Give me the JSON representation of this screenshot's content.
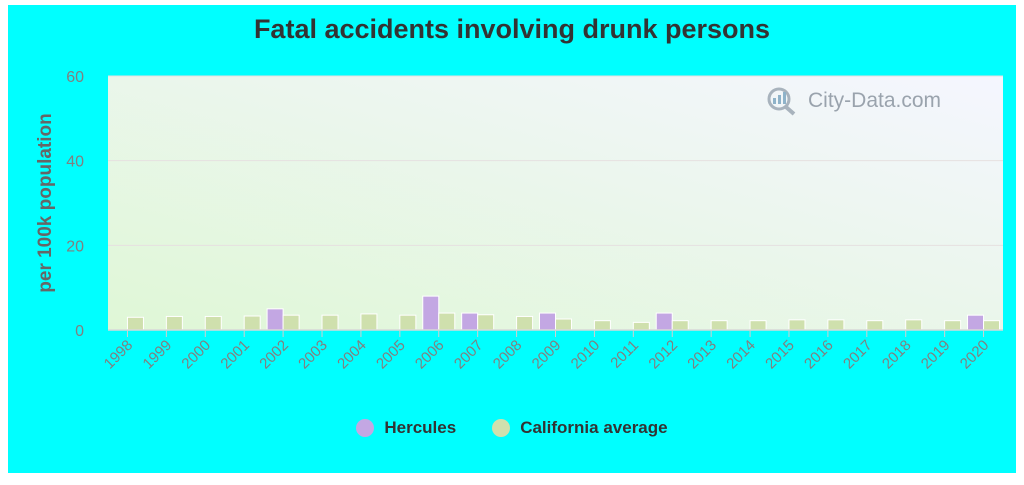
{
  "colors": {
    "page_background": "#00ffff",
    "plot_gradient_top": "#f5f6ff",
    "plot_gradient_bottom": "#dff7d6",
    "hercules": "#c3a7e3",
    "california": "#cfe0ad",
    "text": "#333333",
    "axis_text": "#808080"
  },
  "watermark": {
    "text": "City-Data.com",
    "icon": "magnifier-chart-icon"
  },
  "legend": {
    "items": [
      {
        "label": "Hercules",
        "color": "#c3a7e3"
      },
      {
        "label": "California average",
        "color": "#cfe0ad"
      }
    ]
  },
  "chart_data": {
    "type": "bar",
    "title": "Fatal accidents involving drunk persons",
    "xlabel": "",
    "ylabel": "per 100k population",
    "ylim": [
      0,
      60
    ],
    "yticks": [
      0,
      20,
      40,
      60
    ],
    "grid": true,
    "legend_position": "bottom",
    "categories": [
      "1998",
      "1999",
      "2000",
      "2001",
      "2002",
      "2003",
      "2004",
      "2005",
      "2006",
      "2007",
      "2008",
      "2009",
      "2010",
      "2011",
      "2012",
      "2013",
      "2014",
      "2015",
      "2016",
      "2017",
      "2018",
      "2019",
      "2020"
    ],
    "series": [
      {
        "name": "Hercules",
        "values": [
          null,
          null,
          null,
          null,
          5,
          null,
          null,
          null,
          8,
          4,
          null,
          4,
          null,
          null,
          4,
          null,
          null,
          null,
          null,
          null,
          null,
          null,
          3.5
        ]
      },
      {
        "name": "California average",
        "values": [
          3,
          3.2,
          3.2,
          3.3,
          3.5,
          3.5,
          3.8,
          3.5,
          4,
          3.6,
          3.2,
          2.6,
          2.2,
          1.8,
          2.2,
          2.2,
          2.2,
          2.4,
          2.4,
          2.2,
          2.4,
          2.2,
          2.2
        ]
      }
    ]
  }
}
